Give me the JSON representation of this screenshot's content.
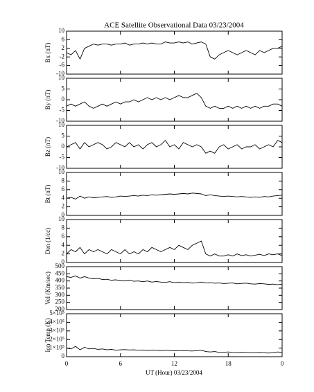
{
  "chart_data": [
    {
      "type": "line",
      "title": "ACE Satellite Observational Data  03/23/2004",
      "ylabel": "Bx (nT)",
      "color": "#000000",
      "x": [
        0,
        0.5,
        1,
        1.5,
        2,
        2.5,
        3,
        3.5,
        4,
        4.5,
        5,
        5.5,
        6,
        6.5,
        7,
        7.5,
        8,
        8.5,
        9,
        9.5,
        10,
        10.5,
        11,
        11.5,
        12,
        12.5,
        13,
        13.5,
        14,
        14.5,
        15,
        15.5,
        16,
        16.5,
        17,
        17.5,
        18,
        18.5,
        19,
        19.5,
        20,
        20.5,
        21,
        21.5,
        22,
        22.5,
        23,
        23.5,
        24
      ],
      "values": [
        0,
        -1,
        1,
        -3,
        2,
        3,
        4,
        3.5,
        4,
        4,
        3.5,
        4,
        4,
        4.5,
        3.5,
        4,
        4,
        4.5,
        4,
        4.5,
        4,
        4,
        5,
        4.5,
        4.5,
        5,
        4.5,
        5,
        4,
        4.5,
        5,
        4,
        -2,
        -3,
        -1,
        0,
        1,
        0,
        -1,
        0,
        1,
        0,
        -1,
        1,
        0,
        1,
        2,
        2,
        3
      ],
      "xlim": [
        0,
        24
      ],
      "xticks": [
        0,
        6,
        12,
        18,
        {
          "value": 24,
          "label": "0"
        }
      ],
      "ylim": [
        -10,
        10
      ],
      "yticks": [
        -10,
        -6,
        -2,
        2,
        6,
        10
      ]
    },
    {
      "type": "line",
      "ylabel": "By (nT)",
      "color": "#000000",
      "x": [
        0,
        0.5,
        1,
        1.5,
        2,
        2.5,
        3,
        3.5,
        4,
        4.5,
        5,
        5.5,
        6,
        6.5,
        7,
        7.5,
        8,
        8.5,
        9,
        9.5,
        10,
        10.5,
        11,
        11.5,
        12,
        12.5,
        13,
        13.5,
        14,
        14.5,
        15,
        15.5,
        16,
        16.5,
        17,
        17.5,
        18,
        18.5,
        19,
        19.5,
        20,
        20.5,
        21,
        21.5,
        22,
        22.5,
        23,
        23.5,
        24
      ],
      "values": [
        -3,
        -2,
        -3,
        -2,
        -1,
        -3,
        -4,
        -3,
        -2,
        -3,
        -2,
        -1,
        -2,
        -1,
        -1,
        0,
        -1,
        0,
        1,
        0,
        1,
        0,
        1,
        0,
        1,
        2,
        1,
        1,
        2,
        3,
        1,
        -3,
        -4,
        -3,
        -4,
        -4,
        -3,
        -4,
        -3,
        -4,
        -3,
        -4,
        -3,
        -4,
        -3,
        -3,
        -2,
        -2,
        -3
      ],
      "xlim": [
        0,
        24
      ],
      "xticks": [
        0,
        6,
        12,
        18,
        {
          "value": 24,
          "label": "0"
        }
      ],
      "ylim": [
        -10,
        10
      ],
      "yticks": [
        -10,
        -5,
        0,
        5,
        10
      ]
    },
    {
      "type": "line",
      "ylabel": "Bz (nT)",
      "color": "#000000",
      "x": [
        0,
        0.5,
        1,
        1.5,
        2,
        2.5,
        3,
        3.5,
        4,
        4.5,
        5,
        5.5,
        6,
        6.5,
        7,
        7.5,
        8,
        8.5,
        9,
        9.5,
        10,
        10.5,
        11,
        11.5,
        12,
        12.5,
        13,
        13.5,
        14,
        14.5,
        15,
        15.5,
        16,
        16.5,
        17,
        17.5,
        18,
        18.5,
        19,
        19.5,
        20,
        20.5,
        21,
        21.5,
        22,
        22.5,
        23,
        23.5,
        24
      ],
      "values": [
        0,
        1,
        2,
        -1,
        2,
        0,
        1,
        2,
        1,
        -1,
        0,
        2,
        1,
        0,
        2,
        0,
        1,
        -1,
        1,
        2,
        0,
        1,
        3,
        0,
        1,
        -1,
        2,
        1,
        0,
        1,
        0,
        -3,
        -2,
        -3,
        0,
        1,
        -1,
        0,
        1,
        -1,
        0,
        0,
        1,
        -1,
        0,
        1,
        0,
        3,
        2
      ],
      "xlim": [
        0,
        24
      ],
      "xticks": [
        0,
        6,
        12,
        18,
        {
          "value": 24,
          "label": "0"
        }
      ],
      "ylim": [
        -10,
        10
      ],
      "yticks": [
        -10,
        -5,
        0,
        5,
        10
      ]
    },
    {
      "type": "line",
      "ylabel": "Bt (nT)",
      "color": "#000000",
      "x": [
        0,
        0.5,
        1,
        1.5,
        2,
        2.5,
        3,
        3.5,
        4,
        4.5,
        5,
        5.5,
        6,
        6.5,
        7,
        7.5,
        8,
        8.5,
        9,
        9.5,
        10,
        10.5,
        11,
        11.5,
        12,
        12.5,
        13,
        13.5,
        14,
        14.5,
        15,
        15.5,
        16,
        16.5,
        17,
        17.5,
        18,
        18.5,
        19,
        19.5,
        20,
        20.5,
        21,
        21.5,
        22,
        22.5,
        23,
        23.5,
        24
      ],
      "values": [
        4,
        4.2,
        3.8,
        4.5,
        4,
        4.3,
        4.1,
        4.2,
        4.3,
        4.4,
        4.2,
        4.3,
        4.5,
        4.4,
        4.5,
        4.6,
        4.5,
        4.7,
        4.6,
        4.8,
        4.7,
        4.8,
        4.9,
        5,
        4.9,
        5,
        5.1,
        5,
        5.2,
        5.1,
        5,
        4.6,
        4.8,
        4.6,
        4.5,
        4.4,
        4.5,
        4.4,
        4.3,
        4.4,
        4.3,
        4.2,
        4.3,
        4.2,
        4.4,
        4.3,
        4.5,
        4.6,
        4.7
      ],
      "xlim": [
        0,
        24
      ],
      "xticks": [
        0,
        6,
        12,
        18,
        {
          "value": 24,
          "label": "0"
        }
      ],
      "ylim": [
        0,
        10
      ],
      "yticks": [
        0,
        2,
        4,
        6,
        8,
        10
      ]
    },
    {
      "type": "line",
      "ylabel": "Den (1/cc)",
      "color": "#000000",
      "x": [
        0,
        0.5,
        1,
        1.5,
        2,
        2.5,
        3,
        3.5,
        4,
        4.5,
        5,
        5.5,
        6,
        6.5,
        7,
        7.5,
        8,
        8.5,
        9,
        9.5,
        10,
        10.5,
        11,
        11.5,
        12,
        12.5,
        13,
        13.5,
        14,
        14.5,
        15,
        15.5,
        16,
        16.5,
        17,
        17.5,
        18,
        18.5,
        19,
        19.5,
        20,
        20.5,
        21,
        21.5,
        22,
        22.5,
        23,
        23.5,
        24
      ],
      "values": [
        2,
        3,
        2.5,
        3.5,
        2,
        3,
        2.5,
        3,
        2.5,
        2,
        3,
        2.5,
        2,
        3,
        2,
        2.5,
        2,
        3,
        2.5,
        3.5,
        3,
        2.5,
        3,
        3.5,
        3,
        4,
        3.5,
        3,
        4,
        4.5,
        5,
        2,
        1.5,
        2,
        1.5,
        1.5,
        1.8,
        1.5,
        2,
        1.6,
        1.8,
        1.5,
        1.7,
        1.9,
        1.6,
        2,
        1.8,
        2,
        1.6
      ],
      "xlim": [
        0,
        24
      ],
      "xticks": [
        0,
        6,
        12,
        18,
        {
          "value": 24,
          "label": "0"
        }
      ],
      "ylim": [
        0,
        10
      ],
      "yticks": [
        0,
        2,
        4,
        6,
        8,
        10
      ]
    },
    {
      "type": "line",
      "ylabel": "Vel (Km/sec)",
      "color": "#000000",
      "x": [
        0,
        0.5,
        1,
        1.5,
        2,
        2.5,
        3,
        3.5,
        4,
        4.5,
        5,
        5.5,
        6,
        6.5,
        7,
        7.5,
        8,
        8.5,
        9,
        9.5,
        10,
        10.5,
        11,
        11.5,
        12,
        12.5,
        13,
        13.5,
        14,
        14.5,
        15,
        15.5,
        16,
        16.5,
        17,
        17.5,
        18,
        18.5,
        19,
        19.5,
        20,
        20.5,
        21,
        21.5,
        22,
        22.5,
        23,
        23.5,
        24
      ],
      "values": [
        430,
        425,
        435,
        420,
        430,
        420,
        415,
        418,
        410,
        412,
        405,
        408,
        402,
        400,
        405,
        398,
        400,
        395,
        400,
        392,
        396,
        392,
        390,
        395,
        388,
        392,
        388,
        390,
        385,
        388,
        392,
        386,
        388,
        384,
        386,
        382,
        384,
        386,
        380,
        383,
        385,
        380,
        378,
        382,
        380,
        376,
        378,
        374,
        378
      ],
      "xlim": [
        0,
        24
      ],
      "xticks": [
        0,
        6,
        12,
        18,
        {
          "value": 24,
          "label": "0"
        }
      ],
      "ylim": [
        200,
        500
      ],
      "yticks": [
        200,
        250,
        300,
        350,
        400,
        450,
        500
      ]
    },
    {
      "type": "line",
      "ylabel": "Ion Temp (K)",
      "xlabel": "UT (Hour)  03/23/2004",
      "color": "#000000",
      "x": [
        0,
        0.5,
        1,
        1.5,
        2,
        2.5,
        3,
        3.5,
        4,
        4.5,
        5,
        5.5,
        6,
        6.5,
        7,
        7.5,
        8,
        8.5,
        9,
        9.5,
        10,
        10.5,
        11,
        11.5,
        12,
        12.5,
        13,
        13.5,
        14,
        14.5,
        15,
        15.5,
        16,
        16.5,
        17,
        17.5,
        18,
        18.5,
        19,
        19.5,
        20,
        20.5,
        21,
        21.5,
        22,
        22.5,
        23,
        23.5,
        24
      ],
      "values": [
        100000,
        90000,
        120000,
        80000,
        110000,
        90000,
        95000,
        85000,
        90000,
        80000,
        85000,
        75000,
        80000,
        82000,
        78000,
        80000,
        75000,
        78000,
        72000,
        76000,
        74000,
        70000,
        75000,
        72000,
        68000,
        70000,
        72000,
        68000,
        66000,
        70000,
        75000,
        60000,
        55000,
        60000,
        50000,
        52000,
        55000,
        50000,
        48000,
        52000,
        50000,
        45000,
        48000,
        50000,
        46000,
        42000,
        48000,
        55000,
        50000
      ],
      "xlim": [
        0,
        24
      ],
      "xticks": [
        0,
        6,
        12,
        18,
        {
          "value": 24,
          "label": "0"
        }
      ],
      "ylim": [
        0,
        500000
      ],
      "yticks": [
        0,
        {
          "value": 100000,
          "label": "1×10⁵"
        },
        {
          "value": 200000,
          "label": "2×10⁵"
        },
        {
          "value": 300000,
          "label": "3×10⁵"
        },
        {
          "value": 400000,
          "label": "4×10⁵"
        },
        {
          "value": 500000,
          "label": "5×10⁵"
        }
      ]
    }
  ]
}
